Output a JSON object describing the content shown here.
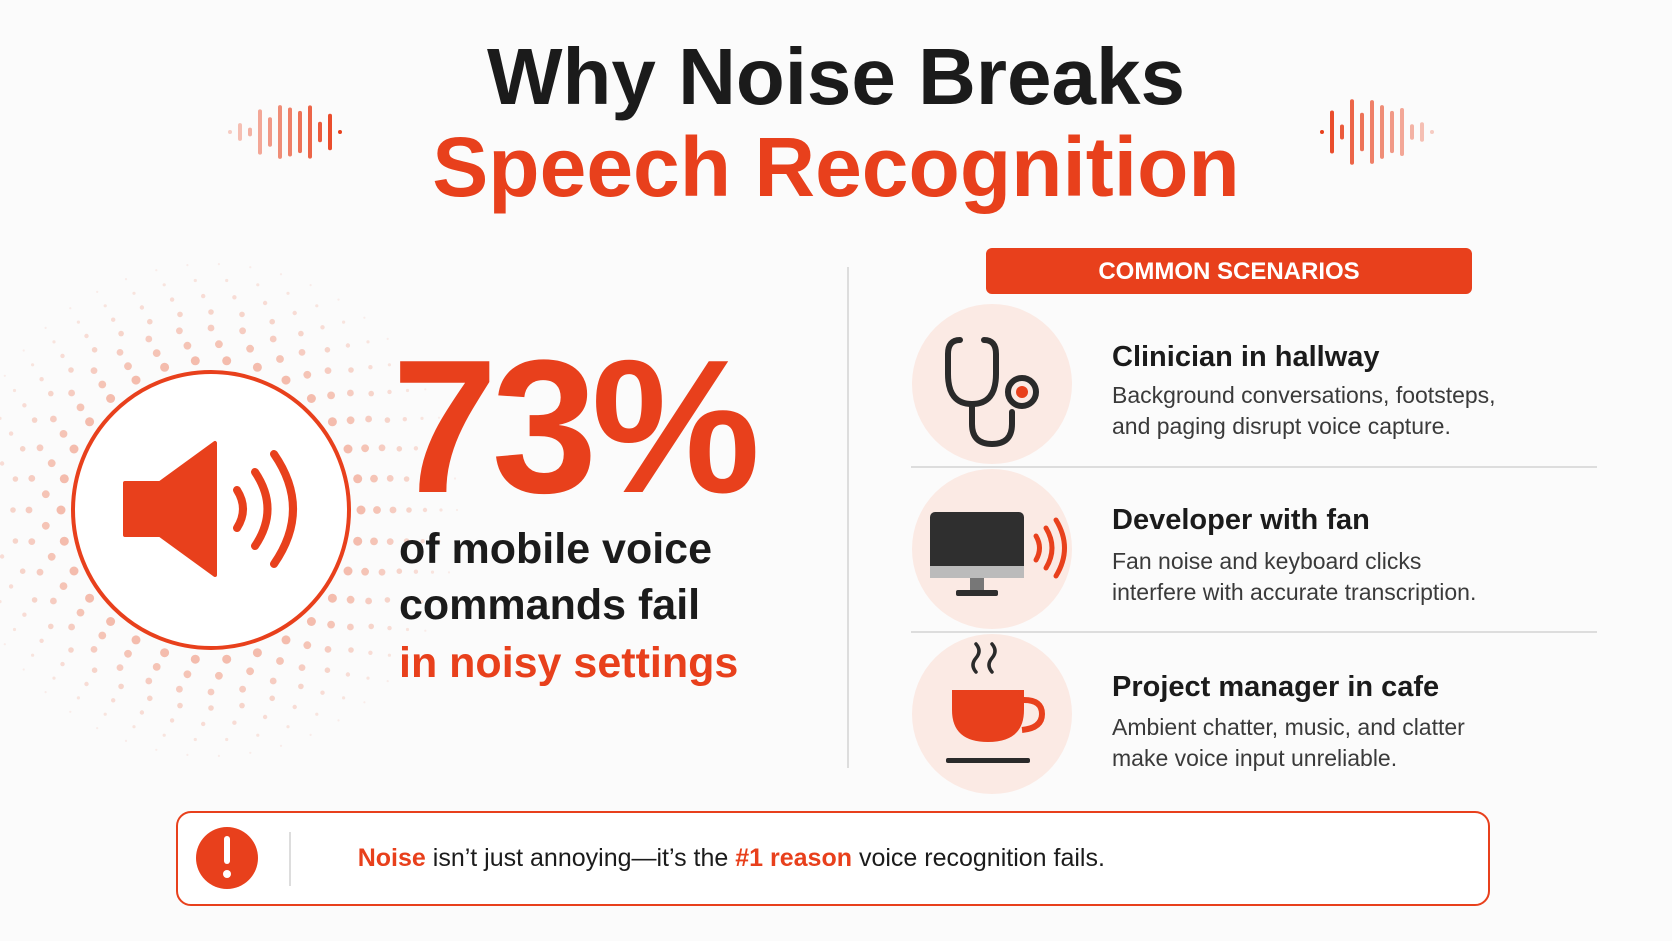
{
  "title": {
    "line1": "Why Noise Breaks",
    "line2": "Speech Recognition"
  },
  "stat": {
    "value": "73%",
    "lines": [
      "of mobile voice",
      "commands fail"
    ],
    "highlight": "in noisy settings"
  },
  "scenarios": {
    "heading": "COMMON SCENARIOS",
    "items": [
      {
        "title": "Clinician in hallway",
        "lines": [
          "Background conversations, footsteps,",
          "and paging disrupt voice capture."
        ]
      },
      {
        "title": "Developer with fan",
        "lines": [
          "Fan noise and keyboard clicks",
          "interfere with accurate transcription."
        ]
      },
      {
        "title": "Project manager in cafe",
        "lines": [
          "Ambient chatter, music, and clatter",
          "make voice input unreliable."
        ]
      }
    ]
  },
  "footer": {
    "parts": [
      "Noise",
      " isn’t just annoying—it’s the ",
      "#1 reason",
      " voice recognition fails."
    ]
  }
}
